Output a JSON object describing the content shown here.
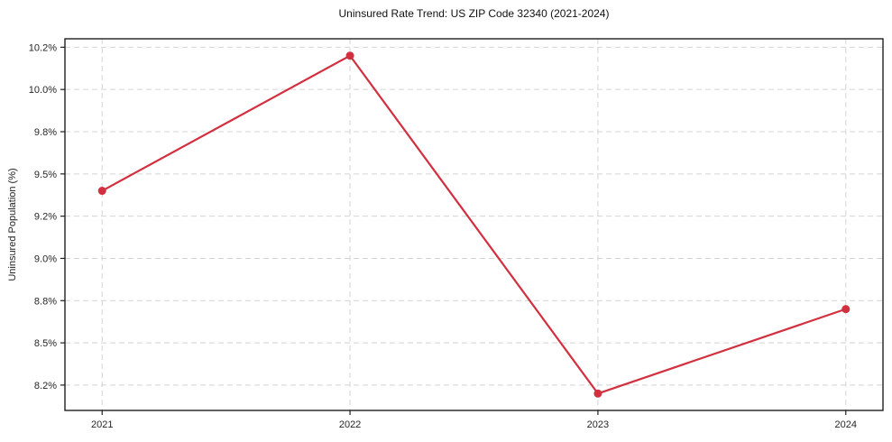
{
  "chart_data": {
    "type": "line",
    "title": "Uninsured Rate Trend: US ZIP Code 32340 (2021-2024)",
    "ylabel": "Uninsured Population (%)",
    "xlabel": "",
    "x": [
      2021,
      2022,
      2023,
      2024
    ],
    "x_tick_labels": [
      "2021",
      "2022",
      "2023",
      "2024"
    ],
    "values": [
      9.4,
      10.2,
      8.2,
      8.7
    ],
    "y_tick_values": [
      8.25,
      8.5,
      8.75,
      9.0,
      9.25,
      9.5,
      9.75,
      10.0,
      10.25
    ],
    "y_tick_labels": [
      "8.2%",
      "8.5%",
      "8.8%",
      "9.0%",
      "9.2%",
      "9.5%",
      "9.8%",
      "10.0%",
      "10.2%"
    ],
    "ylim": [
      8.1,
      10.3
    ],
    "xlim": [
      2020.85,
      2024.15
    ],
    "grid": true,
    "legend": "none",
    "marker": "circle",
    "line_color": "#d22f3f",
    "grid_color": "#d4d4d4",
    "spine_color": "#1f1f1f",
    "tick_label_color": "#262626",
    "background": "#ffffff"
  }
}
